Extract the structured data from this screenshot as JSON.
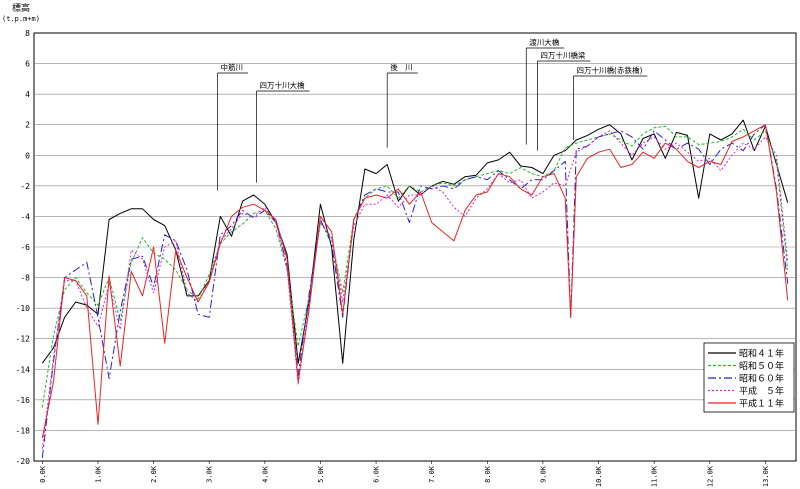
{
  "chart_data": {
    "type": "line",
    "ylabel": "標高",
    "ylabel_unit": "(t.p.m+m)",
    "ylim": [
      -20,
      8
    ],
    "yticks": [
      -20,
      -18,
      -16,
      -14,
      -12,
      -10,
      -8,
      -6,
      -4,
      -2,
      0,
      2,
      4,
      6,
      8
    ],
    "xlim": [
      -0.15,
      13.55
    ],
    "xticks": [
      "0.0K",
      "1.0K",
      "2.0K",
      "3.0K",
      "4.0K",
      "5.0K",
      "6.0K",
      "7.0K",
      "8.0K",
      "9.0K",
      "10.0K",
      "11.0K",
      "12.0K",
      "13.0K"
    ],
    "grid": "horizontal",
    "legend_position": "bottom-right",
    "annotations": [
      {
        "label": "中筋川",
        "x": 3.15,
        "y_tip": -2.3
      },
      {
        "label": "四万十川大橋",
        "x": 3.85,
        "y_tip": -1.8
      },
      {
        "label": "後　川",
        "x": 6.2,
        "y_tip": 0.5
      },
      {
        "label": "渡川大橋",
        "x": 8.7,
        "y_tip": 0.7
      },
      {
        "label": "四万十川橋梁",
        "x": 8.9,
        "y_tip": 0.3
      },
      {
        "label": "四万十川橋(赤鉄橋)",
        "x": 9.55,
        "y_tip": 1.0
      }
    ],
    "series": [
      {
        "name": "昭和４１年",
        "color": "#000000",
        "dash": "",
        "x": [
          0,
          0.2,
          0.4,
          0.6,
          0.8,
          1.0,
          1.2,
          1.4,
          1.6,
          1.8,
          2.0,
          2.2,
          2.4,
          2.6,
          2.8,
          3.0,
          3.2,
          3.4,
          3.6,
          3.8,
          4.0,
          4.2,
          4.4,
          4.6,
          4.8,
          5.0,
          5.2,
          5.4,
          5.6,
          5.8,
          6.0,
          6.2,
          6.4,
          6.6,
          6.8,
          7.0,
          7.2,
          7.4,
          7.6,
          7.8,
          8.0,
          8.2,
          8.4,
          8.6,
          8.8,
          9.0,
          9.2,
          9.4,
          9.6,
          9.8,
          10.0,
          10.2,
          10.4,
          10.6,
          10.8,
          11.0,
          11.2,
          11.4,
          11.6,
          11.8,
          12.0,
          12.2,
          12.4,
          12.6,
          12.8,
          13.0,
          13.2,
          13.4
        ],
        "y": [
          -13.6,
          -12.6,
          -10.6,
          -9.6,
          -9.8,
          -10.4,
          -4.2,
          -3.8,
          -3.5,
          -3.5,
          -4.2,
          -4.6,
          -6.2,
          -9.2,
          -9.2,
          -8.2,
          -4.0,
          -5.3,
          -3.0,
          -2.6,
          -3.2,
          -4.4,
          -6.5,
          -13.6,
          -9.5,
          -3.2,
          -6.0,
          -13.6,
          -5.5,
          -0.9,
          -1.2,
          -0.6,
          -3.0,
          -2.0,
          -2.6,
          -2.0,
          -1.7,
          -1.9,
          -1.4,
          -1.3,
          -0.5,
          -0.3,
          0.2,
          -0.7,
          -0.8,
          -1.2,
          0.0,
          0.3,
          1.0,
          1.3,
          1.7,
          2.0,
          1.4,
          -0.3,
          1.1,
          1.4,
          -0.2,
          1.5,
          1.3,
          -2.8,
          1.4,
          1.0,
          1.4,
          2.3,
          0.3,
          1.9,
          -0.6,
          -3.1
        ]
      },
      {
        "name": "昭和５０年",
        "color": "#22bb22",
        "dash": "3,2",
        "x": [
          0,
          0.2,
          0.4,
          0.6,
          0.8,
          1.0,
          1.2,
          1.4,
          1.6,
          1.8,
          2.0,
          2.2,
          2.4,
          2.6,
          2.8,
          3.0,
          3.2,
          3.4,
          3.6,
          3.8,
          4.0,
          4.2,
          4.4,
          4.6,
          4.8,
          5.0,
          5.2,
          5.4,
          5.6,
          5.8,
          6.0,
          6.2,
          6.4,
          6.6,
          6.8,
          7.0,
          7.2,
          7.4,
          7.6,
          7.8,
          8.0,
          8.2,
          8.4,
          8.6,
          8.8,
          9.0,
          9.2,
          9.4,
          9.6,
          9.8,
          10.0,
          10.2,
          10.4,
          10.6,
          10.8,
          11.0,
          11.2,
          11.4,
          11.6,
          11.8,
          12.0,
          12.2,
          12.4,
          12.6,
          12.8,
          13.0,
          13.2,
          13.4
        ],
        "y": [
          -16.5,
          -11.8,
          -8.8,
          -8.0,
          -9.0,
          -9.8,
          -8.0,
          -10.8,
          -7.0,
          -5.4,
          -6.4,
          -6.8,
          -7.5,
          -8.8,
          -9.4,
          -7.8,
          -5.8,
          -5.0,
          -4.5,
          -3.8,
          -3.6,
          -4.8,
          -7.5,
          -12.5,
          -9.2,
          -4.4,
          -5.5,
          -9.0,
          -4.2,
          -2.8,
          -2.2,
          -2.0,
          -2.8,
          -2.0,
          -2.4,
          -2.0,
          -1.8,
          -2.0,
          -1.6,
          -1.4,
          -1.2,
          -1.0,
          -1.2,
          -0.8,
          -1.2,
          -1.4,
          -1.0,
          0.5,
          0.8,
          1.0,
          1.2,
          1.4,
          1.0,
          0.6,
          1.4,
          1.8,
          1.9,
          1.2,
          1.2,
          0.7,
          0.8,
          0.9,
          1.2,
          1.7,
          1.0,
          1.6,
          -0.4,
          -7.5
        ]
      },
      {
        "name": "昭和６０年",
        "color": "#2222cc",
        "dash": "8,3,2,3",
        "x": [
          0,
          0.2,
          0.4,
          0.6,
          0.8,
          1.0,
          1.2,
          1.4,
          1.6,
          1.8,
          2.0,
          2.2,
          2.4,
          2.6,
          2.8,
          3.0,
          3.2,
          3.4,
          3.6,
          3.8,
          4.0,
          4.2,
          4.4,
          4.6,
          4.8,
          5.0,
          5.2,
          5.4,
          5.6,
          5.8,
          6.0,
          6.2,
          6.4,
          6.6,
          6.8,
          7.0,
          7.2,
          7.4,
          7.6,
          7.8,
          8.0,
          8.2,
          8.4,
          8.6,
          8.8,
          9.0,
          9.2,
          9.4,
          9.5,
          9.6,
          9.8,
          10.0,
          10.2,
          10.4,
          10.6,
          10.8,
          11.0,
          11.2,
          11.4,
          11.6,
          11.8,
          12.0,
          12.2,
          12.4,
          12.6,
          12.8,
          13.0,
          13.2,
          13.4
        ],
        "y": [
          -19.8,
          -13.5,
          -8.0,
          -7.5,
          -7.0,
          -10.6,
          -14.6,
          -10.2,
          -6.8,
          -6.6,
          -8.6,
          -5.2,
          -5.6,
          -7.5,
          -10.4,
          -10.6,
          -5.2,
          -4.6,
          -3.6,
          -4.1,
          -3.6,
          -4.4,
          -7.2,
          -14.4,
          -9.0,
          -4.2,
          -5.8,
          -10.6,
          -4.2,
          -2.6,
          -2.2,
          -2.4,
          -2.4,
          -4.4,
          -2.0,
          -2.2,
          -2.0,
          -2.2,
          -1.6,
          -1.4,
          -1.6,
          -1.0,
          -1.6,
          -2.2,
          -1.6,
          -1.6,
          -1.0,
          -0.4,
          -10.6,
          0.4,
          0.6,
          1.2,
          1.4,
          1.6,
          1.2,
          0.4,
          1.6,
          1.0,
          0.4,
          0.8,
          0.4,
          -0.6,
          0.4,
          0.8,
          0.3,
          1.4,
          2.0,
          -2.2,
          -8.4
        ]
      },
      {
        "name": "平成　５年",
        "color": "#dd22dd",
        "dash": "2,2",
        "x": [
          0,
          0.2,
          0.4,
          0.6,
          0.8,
          1.0,
          1.2,
          1.4,
          1.6,
          1.8,
          2.0,
          2.2,
          2.4,
          2.6,
          2.8,
          3.0,
          3.2,
          3.4,
          3.6,
          3.8,
          4.0,
          4.2,
          4.4,
          4.6,
          4.8,
          5.0,
          5.2,
          5.4,
          5.6,
          5.8,
          6.0,
          6.2,
          6.4,
          6.6,
          6.8,
          7.0,
          7.2,
          7.4,
          7.6,
          7.8,
          8.0,
          8.2,
          8.4,
          8.6,
          8.8,
          9.0,
          9.2,
          9.4,
          9.6,
          9.8,
          10.0,
          10.2,
          10.4,
          10.6,
          10.8,
          11.0,
          11.2,
          11.4,
          11.6,
          11.8,
          12.0,
          12.2,
          12.4,
          12.6,
          12.8,
          13.0,
          13.2,
          13.4
        ],
        "y": [
          -19.2,
          -13.2,
          -8.2,
          -8.2,
          -10.0,
          -11.2,
          -8.4,
          -11.4,
          -6.2,
          -6.8,
          -9.0,
          -6.0,
          -5.6,
          -9.0,
          -9.6,
          -8.2,
          -5.6,
          -4.8,
          -3.8,
          -4.0,
          -3.4,
          -4.4,
          -7.4,
          -15.0,
          -9.4,
          -4.4,
          -5.4,
          -9.6,
          -4.6,
          -3.2,
          -3.2,
          -2.6,
          -3.4,
          -2.6,
          -2.6,
          -2.0,
          -2.4,
          -3.4,
          -4.0,
          -2.8,
          -2.2,
          -1.2,
          -1.8,
          -1.6,
          -2.8,
          -2.4,
          -1.8,
          -2.0,
          0.2,
          0.6,
          1.2,
          1.6,
          0.8,
          0.0,
          0.8,
          1.2,
          0.4,
          0.8,
          0.2,
          -0.4,
          -0.2,
          -1.0,
          0.0,
          0.8,
          0.4,
          1.2,
          0.0,
          -7.0
        ]
      },
      {
        "name": "平成１１年",
        "color": "#ee2222",
        "dash": "",
        "x": [
          0,
          0.2,
          0.4,
          0.6,
          0.8,
          1.0,
          1.2,
          1.4,
          1.6,
          1.8,
          2.0,
          2.2,
          2.4,
          2.6,
          2.8,
          3.0,
          3.2,
          3.4,
          3.6,
          3.8,
          4.0,
          4.2,
          4.4,
          4.6,
          4.8,
          5.0,
          5.2,
          5.4,
          5.6,
          5.8,
          6.0,
          6.2,
          6.4,
          6.6,
          6.8,
          7.0,
          7.2,
          7.4,
          7.6,
          7.8,
          8.0,
          8.2,
          8.4,
          8.6,
          8.8,
          9.0,
          9.2,
          9.4,
          9.5,
          9.6,
          9.8,
          10.0,
          10.2,
          10.4,
          10.6,
          10.8,
          11.0,
          11.2,
          11.4,
          11.6,
          11.8,
          12.0,
          12.2,
          12.4,
          12.6,
          12.8,
          13.0,
          13.2,
          13.4
        ],
        "y": [
          -18.5,
          -14.8,
          -8.0,
          -8.2,
          -9.2,
          -17.6,
          -7.9,
          -13.8,
          -7.6,
          -9.2,
          -6.0,
          -12.3,
          -6.2,
          -8.0,
          -9.6,
          -8.3,
          -5.8,
          -4.0,
          -3.4,
          -3.2,
          -3.6,
          -4.2,
          -6.8,
          -14.8,
          -10.0,
          -4.0,
          -5.0,
          -10.4,
          -4.2,
          -2.8,
          -2.6,
          -2.8,
          -2.2,
          -3.2,
          -2.4,
          -4.4,
          -5.0,
          -5.6,
          -3.6,
          -2.6,
          -2.4,
          -1.2,
          -1.4,
          -2.2,
          -2.6,
          -1.4,
          -1.2,
          -2.8,
          -10.6,
          -1.4,
          -0.2,
          0.2,
          0.4,
          -0.8,
          -0.6,
          0.2,
          -0.2,
          0.8,
          0.4,
          -0.4,
          -0.8,
          -0.4,
          -0.6,
          0.9,
          1.2,
          1.6,
          2.0,
          -2.4,
          -9.5
        ]
      }
    ]
  }
}
